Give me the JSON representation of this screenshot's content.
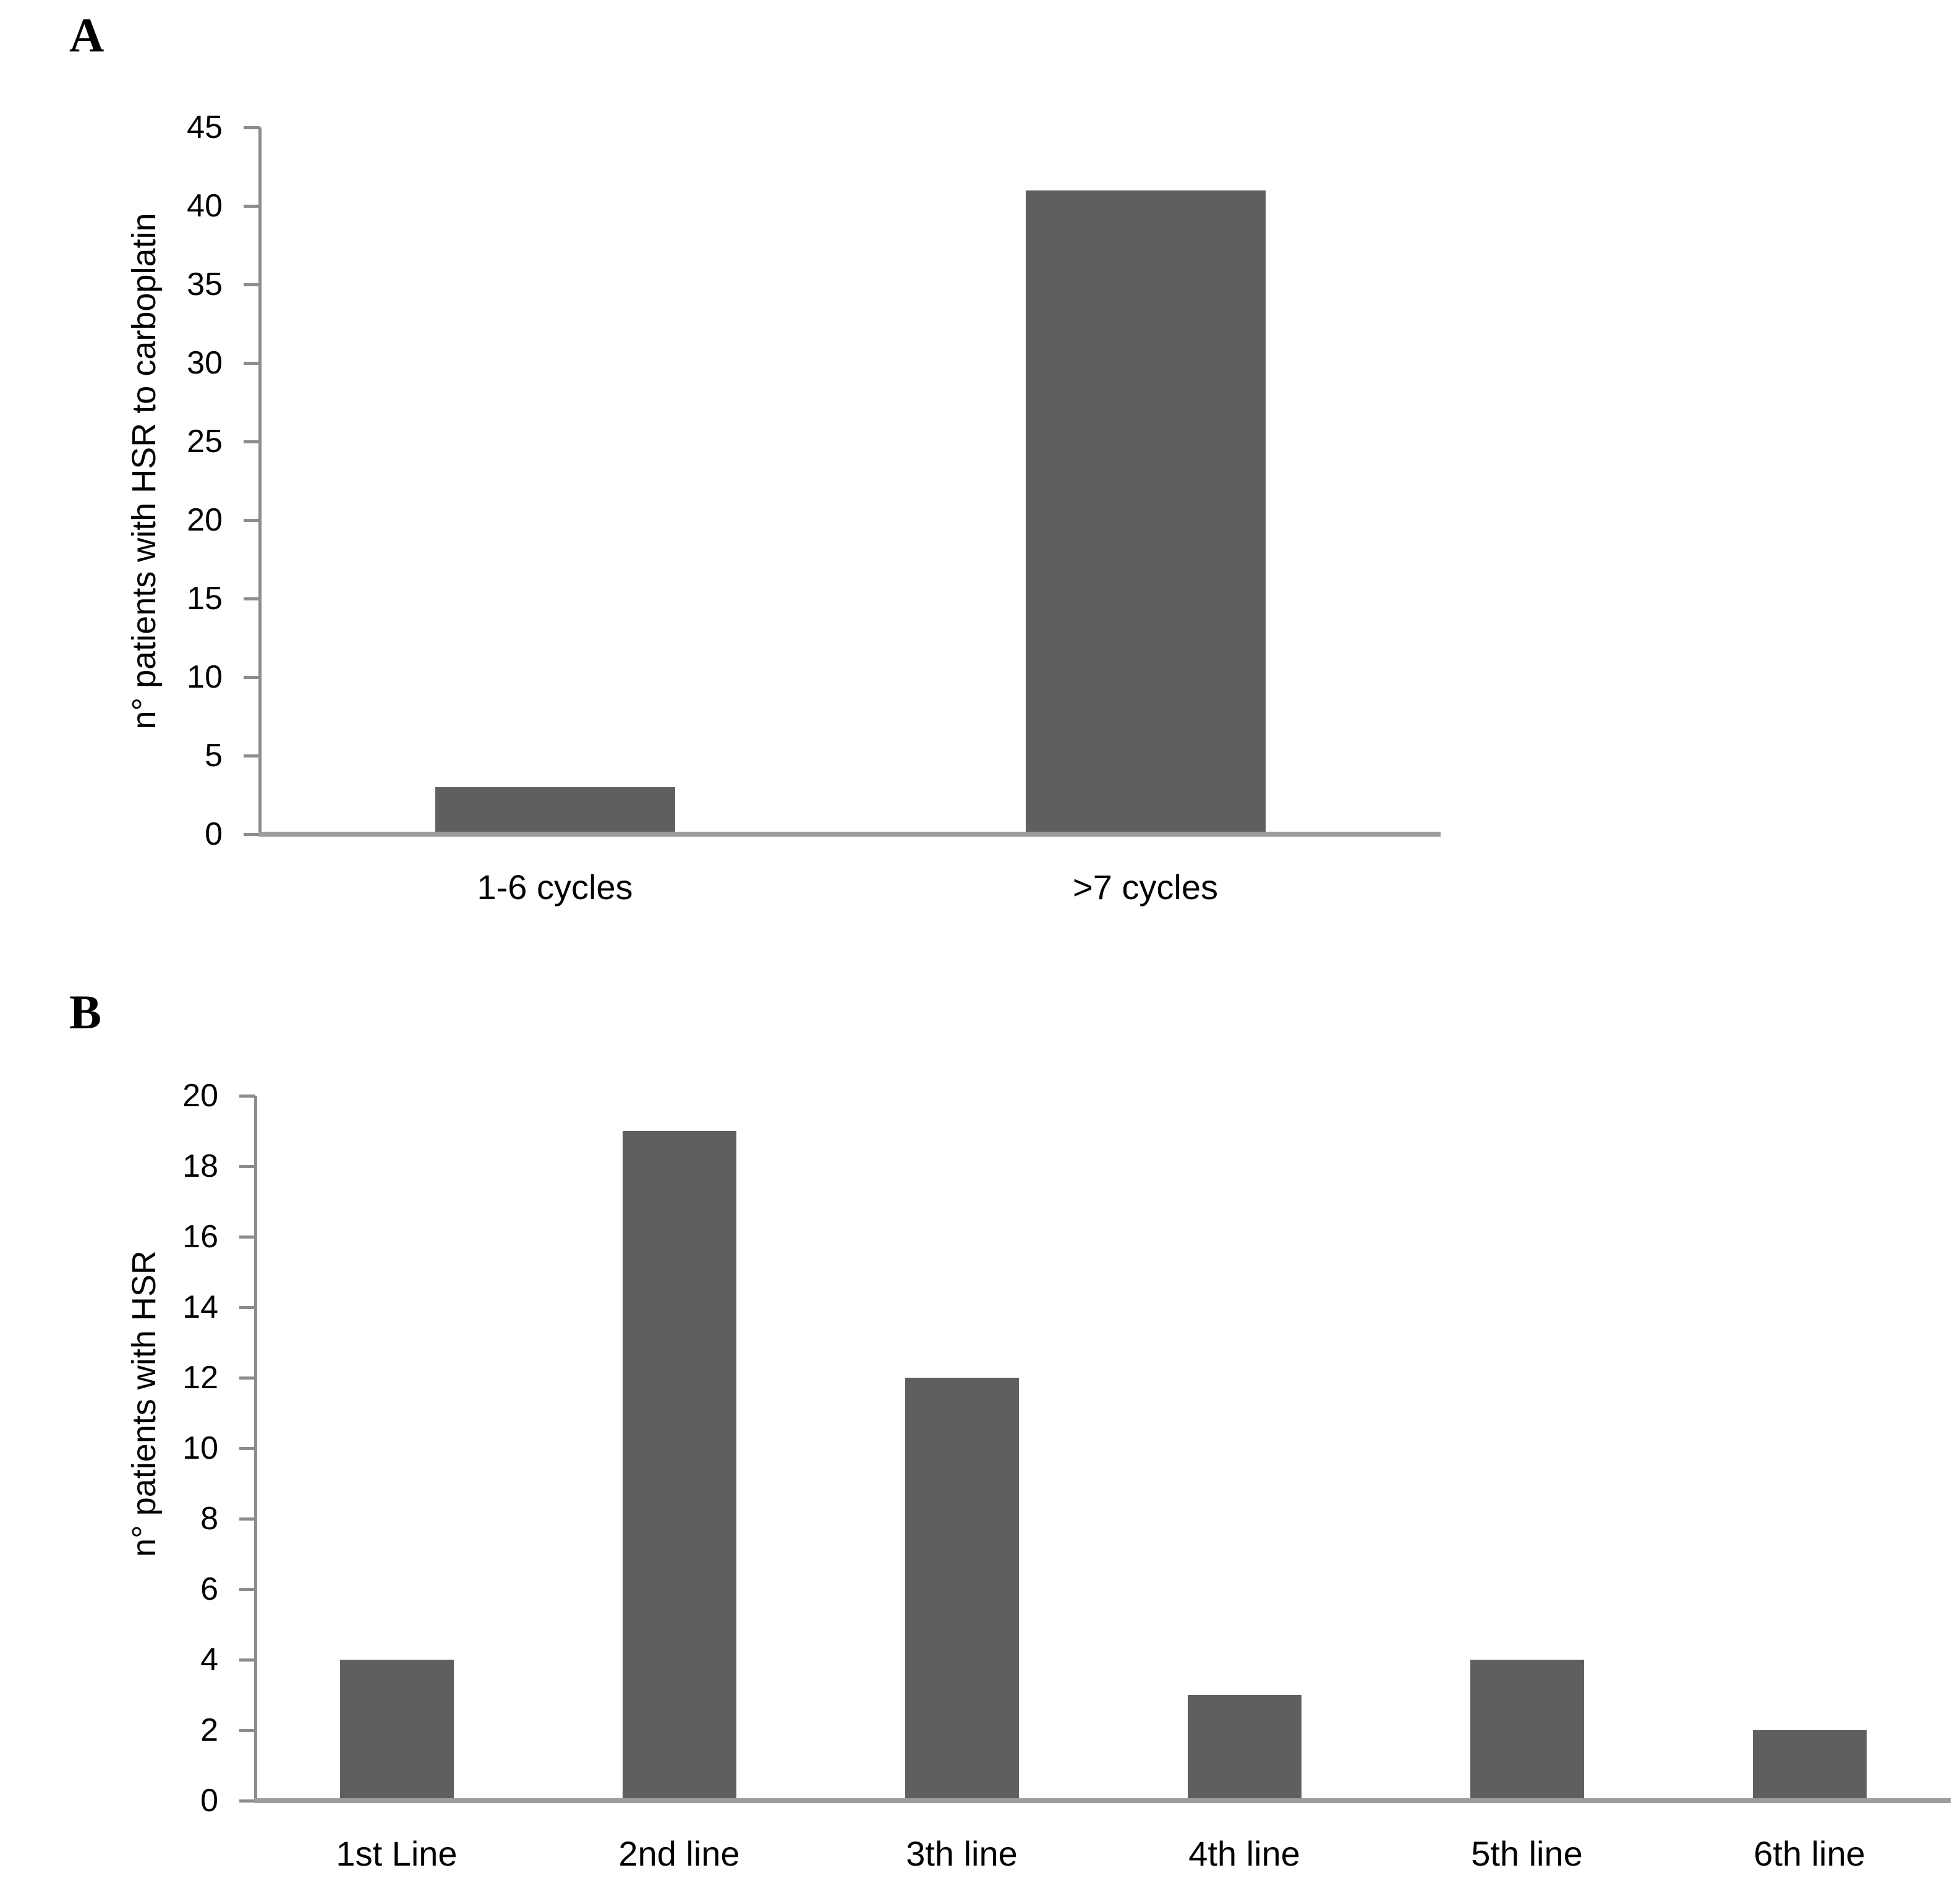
{
  "figure": {
    "background": "#ffffff",
    "panels": [
      {
        "label": "A"
      },
      {
        "label": "B"
      }
    ]
  },
  "colors": {
    "bar": "#5f5f5f",
    "y_axis_line": "#8c8c8c",
    "x_axis_line": "#9d9d9d",
    "tick": "#8c8c8c",
    "text": "#000000"
  },
  "chart_data": [
    {
      "type": "bar",
      "panel": "A",
      "title": "",
      "xlabel": "",
      "ylabel": "n° patients with HSR to carboplatin",
      "categories": [
        "1-6 cycles",
        ">7 cycles"
      ],
      "values": [
        3,
        41
      ],
      "ylim": [
        0,
        45
      ],
      "ytick_step": 5,
      "yticks": [
        0,
        5,
        10,
        15,
        20,
        25,
        30,
        35,
        40,
        45
      ],
      "grid": false,
      "legend": "none",
      "bar_color": "#5f5f5f"
    },
    {
      "type": "bar",
      "panel": "B",
      "title": "",
      "xlabel": "",
      "ylabel": "n° patients with HSR",
      "categories": [
        "1st Line",
        "2nd line",
        "3th line",
        "4th line",
        "5th line",
        "6th line"
      ],
      "values": [
        4,
        19,
        12,
        3,
        4,
        2
      ],
      "ylim": [
        0,
        20
      ],
      "ytick_step": 2,
      "yticks": [
        0,
        2,
        4,
        6,
        8,
        10,
        12,
        14,
        16,
        18,
        20
      ],
      "grid": false,
      "legend": "none",
      "bar_color": "#5f5f5f"
    }
  ]
}
